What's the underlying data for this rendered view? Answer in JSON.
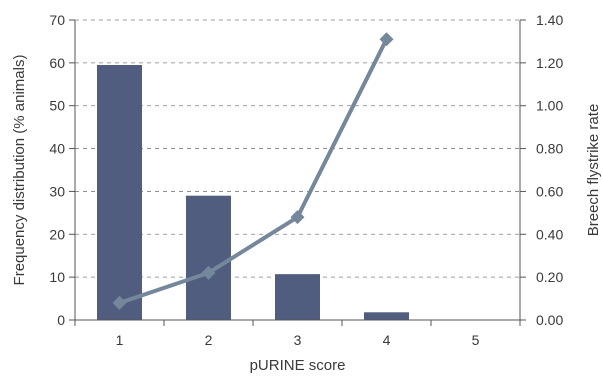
{
  "chart_data": {
    "type": "bar",
    "xlabel": "pURINE score",
    "ylabel": "Frequency distribution (% animals)",
    "y2label": "Breech flystrike rate",
    "categories": [
      "1",
      "2",
      "3",
      "4",
      "5"
    ],
    "ylim": [
      0,
      70
    ],
    "y2lim": [
      0,
      1.4
    ],
    "yticks": [
      "0",
      "10",
      "20",
      "30",
      "40",
      "50",
      "60",
      "70"
    ],
    "y2ticks": [
      "0.00",
      "0.20",
      "0.40",
      "0.60",
      "0.80",
      "1.00",
      "1.20",
      "1.40"
    ],
    "grid": "dashed horizontal",
    "series": [
      {
        "type": "bar",
        "axis": "left",
        "values": [
          59.5,
          29,
          10.7,
          1.8,
          0
        ],
        "color": "#505d7e"
      },
      {
        "type": "line",
        "axis": "right",
        "marker": "diamond",
        "values": [
          0.08,
          0.22,
          0.48,
          1.31,
          null
        ],
        "color": "#75879a"
      }
    ]
  }
}
